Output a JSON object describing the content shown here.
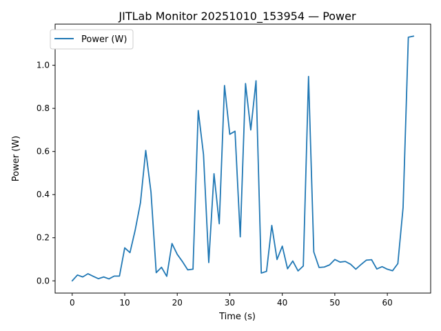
{
  "chart_data": {
    "type": "line",
    "title": "JITLab Monitor 20251010_153954 — Power",
    "xlabel": "Time (s)",
    "ylabel": "Power (W)",
    "xlim": [
      -3.25,
      68.25
    ],
    "ylim": [
      -0.0567,
      1.1907
    ],
    "x_ticks": [
      0,
      10,
      20,
      30,
      40,
      50,
      60
    ],
    "x_tick_labels": [
      "0",
      "10",
      "20",
      "30",
      "40",
      "50",
      "60"
    ],
    "y_ticks": [
      0.0,
      0.2,
      0.4,
      0.6,
      0.8,
      1.0
    ],
    "y_tick_labels": [
      "0.0",
      "0.2",
      "0.4",
      "0.6",
      "0.8",
      "1.0"
    ],
    "grid": false,
    "legend": {
      "placement": "top-left"
    },
    "series": [
      {
        "name": "Power (W)",
        "color": "#1f77b4",
        "x": [
          0,
          1,
          2,
          3,
          4,
          5,
          6,
          7,
          8,
          9,
          10,
          11,
          12,
          13,
          14,
          15,
          16,
          17,
          18,
          19,
          20,
          21,
          22,
          23,
          24,
          25,
          26,
          27,
          28,
          29,
          30,
          31,
          32,
          33,
          34,
          35,
          36,
          37,
          38,
          39,
          40,
          41,
          42,
          43,
          44,
          45,
          46,
          47,
          48,
          49,
          50,
          51,
          52,
          53,
          54,
          55,
          56,
          57,
          58,
          59,
          60,
          61,
          62,
          63,
          64,
          65
        ],
        "values": [
          0.0,
          0.027,
          0.018,
          0.033,
          0.021,
          0.01,
          0.018,
          0.009,
          0.022,
          0.022,
          0.153,
          0.131,
          0.236,
          0.363,
          0.605,
          0.412,
          0.038,
          0.063,
          0.021,
          0.173,
          0.123,
          0.089,
          0.051,
          0.054,
          0.79,
          0.586,
          0.085,
          0.497,
          0.265,
          0.906,
          0.68,
          0.694,
          0.204,
          0.915,
          0.7,
          0.928,
          0.036,
          0.044,
          0.257,
          0.099,
          0.161,
          0.056,
          0.092,
          0.046,
          0.069,
          0.948,
          0.134,
          0.062,
          0.064,
          0.074,
          0.099,
          0.087,
          0.09,
          0.077,
          0.054,
          0.076,
          0.096,
          0.098,
          0.055,
          0.066,
          0.054,
          0.047,
          0.08,
          0.34,
          1.13,
          1.135
        ]
      }
    ]
  }
}
